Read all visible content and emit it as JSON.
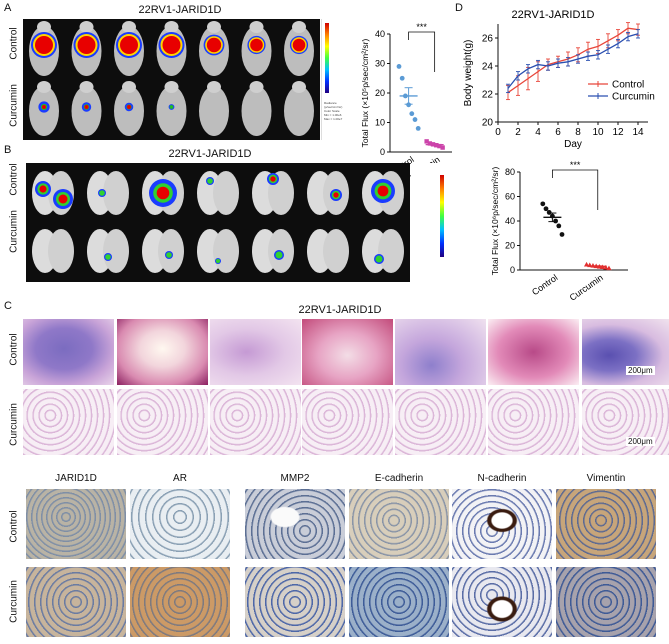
{
  "panels": {
    "A": "A",
    "B": "B",
    "C": "C",
    "D": "D"
  },
  "cell_line": "22RV1-JARID1D",
  "groups": {
    "control": "Control",
    "curcumin": "Curcumin"
  },
  "scale_bar": "200μm",
  "colorbar_text": "Radiance\n(p/sec/cm²/sr)\nColor Scale\nMin = 1.00e6\nMax = 1.00e7",
  "ihc_markers": [
    "JARID1D",
    "AR",
    "MMP2",
    "E-cadherin",
    "N-cadherin",
    "Vimentin"
  ],
  "chart_data": [
    {
      "type": "scatter",
      "panel": "A",
      "ylabel": "Total Flux (×10⁵p/sec/cm²/sr)",
      "categories": [
        "Control",
        "Curcumin"
      ],
      "ylim": [
        0,
        40
      ],
      "yticks": [
        0,
        10,
        20,
        30,
        40
      ],
      "significance": "***",
      "colors": {
        "Control": "#5b9bd5",
        "Curcumin": "#cc44aa"
      },
      "series": [
        {
          "name": "Control",
          "values": [
            29,
            25,
            19,
            16,
            13,
            11,
            8
          ],
          "mean": 19,
          "sem": 2.8
        },
        {
          "name": "Curcumin",
          "values": [
            3.6,
            2.9,
            2.6,
            2.3,
            2.0,
            1.5
          ],
          "mean": 2.5,
          "sem": 0.3
        }
      ]
    },
    {
      "type": "line",
      "panel": "D",
      "title": "22RV1-JARID1D",
      "xlabel": "Day",
      "ylabel": "Body weight(g)",
      "xlim": [
        0,
        15
      ],
      "ylim": [
        20,
        27
      ],
      "xticks": [
        0,
        2,
        4,
        6,
        8,
        10,
        12,
        14
      ],
      "yticks": [
        20,
        22,
        24,
        26
      ],
      "legend": "right",
      "series": [
        {
          "name": "Control",
          "color": "#e8463a",
          "x": [
            1,
            2,
            3,
            4,
            5,
            6,
            7,
            8,
            9,
            10,
            11,
            12,
            13,
            14
          ],
          "y": [
            22.1,
            22.6,
            23.1,
            23.6,
            24.1,
            24.3,
            24.5,
            24.8,
            25.2,
            25.4,
            25.8,
            26.2,
            26.7,
            26.6
          ],
          "err": [
            0.5,
            0.7,
            0.8,
            0.7,
            0.4,
            0.4,
            0.5,
            0.5,
            0.5,
            0.5,
            0.5,
            0.4,
            0.4,
            0.4
          ]
        },
        {
          "name": "Curcumin",
          "color": "#2a4fb0",
          "x": [
            1,
            2,
            3,
            4,
            5,
            6,
            7,
            8,
            9,
            10,
            11,
            12,
            13,
            14
          ],
          "y": [
            22.4,
            23.3,
            23.8,
            24.1,
            24.0,
            24.2,
            24.3,
            24.5,
            24.7,
            24.8,
            25.2,
            25.6,
            26.1,
            26.3
          ],
          "err": [
            0.3,
            0.3,
            0.3,
            0.3,
            0.3,
            0.3,
            0.3,
            0.3,
            0.3,
            0.3,
            0.3,
            0.3,
            0.3,
            0.3
          ]
        }
      ]
    },
    {
      "type": "scatter",
      "panel": "B",
      "ylabel": "Total Flux (×10⁶p/sec/cm²/sr)",
      "categories": [
        "Control",
        "Curcumin"
      ],
      "ylim": [
        0,
        80
      ],
      "yticks": [
        0,
        20,
        40,
        60,
        80
      ],
      "significance": "***",
      "colors": {
        "Control": "#111111",
        "Curcumin": "#e23030"
      },
      "series": [
        {
          "name": "Control",
          "values": [
            54,
            50,
            47,
            44,
            40,
            36,
            29
          ],
          "mean": 43,
          "sem": 3.5
        },
        {
          "name": "Curcumin",
          "values": [
            4.5,
            4,
            3.6,
            3.2,
            2.8,
            2.4,
            2,
            1.5
          ],
          "mean": 3,
          "sem": 0.4
        }
      ]
    }
  ]
}
